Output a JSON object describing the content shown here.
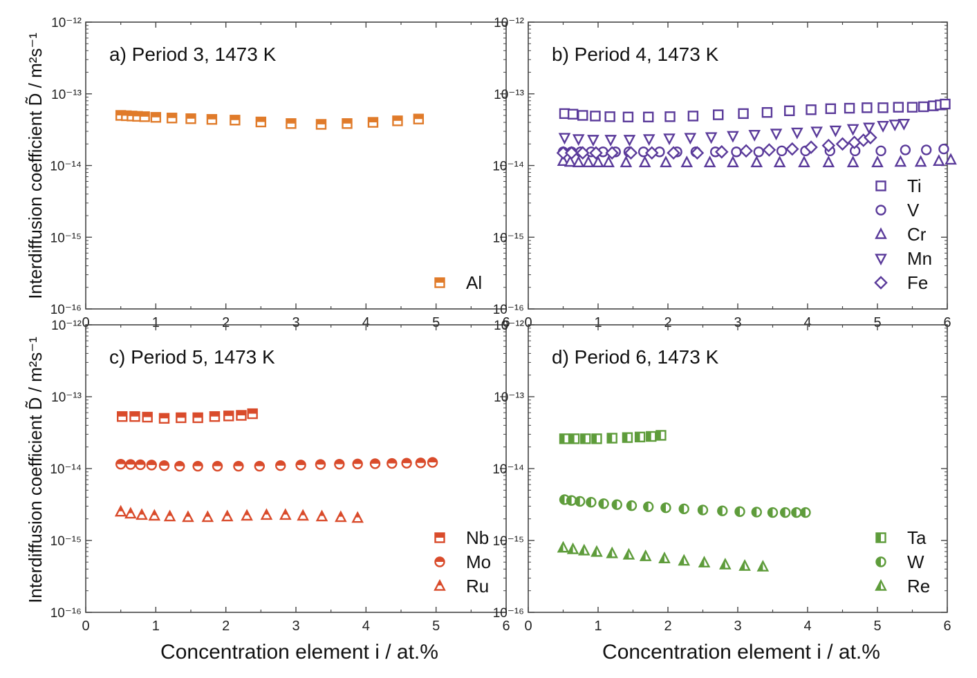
{
  "figure": {
    "x_axis_label": "Concentration element i / at.%",
    "y_axis_label": "Interdiffusion coefficient D̃ / m²s⁻¹"
  },
  "chart_data": [
    {
      "type": "scatter",
      "panel": "a",
      "title": "a) Period 3, 1473 K",
      "xlim": [
        0,
        6
      ],
      "ylim": [
        1e-16,
        1e-12
      ],
      "yscale": "log",
      "xticks": [
        "0",
        "1",
        "2",
        "3",
        "4",
        "5",
        "6"
      ],
      "yticks": [
        "10⁻¹²",
        "10⁻¹³",
        "10⁻¹⁴",
        "10⁻¹⁵",
        "10⁻¹⁶"
      ],
      "legend_position": "bottom-right",
      "series": [
        {
          "name": "Al",
          "marker": "square-half",
          "color": "#e07b2a",
          "x": [
            0.5,
            0.58,
            0.66,
            0.74,
            0.84,
            1.0,
            1.23,
            1.5,
            1.8,
            2.13,
            2.5,
            2.93,
            3.36,
            3.73,
            4.1,
            4.45,
            4.75
          ],
          "y": [
            5e-14,
            4.95e-14,
            4.9e-14,
            4.85e-14,
            4.8e-14,
            4.7e-14,
            4.6e-14,
            4.5e-14,
            4.4e-14,
            4.3e-14,
            4.05e-14,
            3.85e-14,
            3.75e-14,
            3.85e-14,
            4e-14,
            4.2e-14,
            4.45e-14
          ]
        }
      ]
    },
    {
      "type": "scatter",
      "panel": "b",
      "title": "b) Period 4, 1473 K",
      "xlim": [
        0,
        6
      ],
      "ylim": [
        1e-16,
        1e-12
      ],
      "yscale": "log",
      "xticks": [
        "0",
        "1",
        "2",
        "3",
        "4",
        "5",
        "6"
      ],
      "yticks": [
        "10⁻¹²",
        "10⁻¹³",
        "10⁻¹⁴",
        "10⁻¹⁵",
        "10⁻¹⁶"
      ],
      "legend_position": "bottom-right",
      "series": [
        {
          "name": "Ti",
          "marker": "square",
          "color": "#5a3a9a",
          "x": [
            0.52,
            0.64,
            0.78,
            0.96,
            1.17,
            1.43,
            1.72,
            2.03,
            2.36,
            2.72,
            3.08,
            3.42,
            3.74,
            4.05,
            4.33,
            4.6,
            4.85,
            5.08,
            5.3,
            5.5,
            5.66,
            5.8,
            5.9,
            5.97
          ],
          "y": [
            5.3e-14,
            5.2e-14,
            5e-14,
            4.9e-14,
            4.8e-14,
            4.75e-14,
            4.75e-14,
            4.8e-14,
            4.9e-14,
            5.1e-14,
            5.3e-14,
            5.5e-14,
            5.8e-14,
            6e-14,
            6.2e-14,
            6.3e-14,
            6.4e-14,
            6.4e-14,
            6.5e-14,
            6.5e-14,
            6.6e-14,
            6.8e-14,
            7e-14,
            7.2e-14
          ]
        },
        {
          "name": "V",
          "marker": "circle",
          "color": "#5a3a9a",
          "x": [
            0.5,
            0.62,
            0.75,
            0.9,
            1.07,
            1.25,
            1.44,
            1.65,
            1.88,
            2.13,
            2.4,
            2.68,
            2.98,
            3.3,
            3.63,
            3.97,
            4.32,
            4.68,
            5.05,
            5.4,
            5.7,
            5.95
          ],
          "y": [
            1.55e-14,
            1.55e-14,
            1.55e-14,
            1.55e-14,
            1.55e-14,
            1.55e-14,
            1.55e-14,
            1.55e-14,
            1.55e-14,
            1.55e-14,
            1.55e-14,
            1.55e-14,
            1.55e-14,
            1.55e-14,
            1.6e-14,
            1.6e-14,
            1.6e-14,
            1.6e-14,
            1.6e-14,
            1.65e-14,
            1.65e-14,
            1.7e-14
          ]
        },
        {
          "name": "Cr",
          "marker": "triangle-up",
          "color": "#5a3a9a",
          "x": [
            0.5,
            0.6,
            0.72,
            0.86,
            1.0,
            1.15,
            1.4,
            1.67,
            1.97,
            2.27,
            2.6,
            2.93,
            3.27,
            3.6,
            3.95,
            4.3,
            4.65,
            5.0,
            5.33,
            5.62,
            5.88,
            6.05
          ],
          "y": [
            1.15e-14,
            1.12e-14,
            1.1e-14,
            1.1e-14,
            1.1e-14,
            1.1e-14,
            1.1e-14,
            1.1e-14,
            1.1e-14,
            1.1e-14,
            1.1e-14,
            1.1e-14,
            1.1e-14,
            1.1e-14,
            1.1e-14,
            1.1e-14,
            1.1e-14,
            1.1e-14,
            1.12e-14,
            1.12e-14,
            1.15e-14,
            1.2e-14
          ]
        },
        {
          "name": "Mn",
          "marker": "triangle-down",
          "color": "#5a3a9a",
          "x": [
            0.52,
            0.72,
            0.93,
            1.18,
            1.45,
            1.73,
            2.02,
            2.32,
            2.62,
            2.93,
            3.24,
            3.55,
            3.85,
            4.13,
            4.4,
            4.65,
            4.88,
            5.08,
            5.25,
            5.38
          ],
          "y": [
            2.45e-14,
            2.35e-14,
            2.3e-14,
            2.3e-14,
            2.3e-14,
            2.35e-14,
            2.4e-14,
            2.45e-14,
            2.5e-14,
            2.6e-14,
            2.7e-14,
            2.8e-14,
            2.9e-14,
            3e-14,
            3.1e-14,
            3.25e-14,
            3.4e-14,
            3.6e-14,
            3.75e-14,
            3.85e-14
          ]
        },
        {
          "name": "Fe",
          "marker": "diamond",
          "color": "#5a3a9a",
          "x": [
            0.5,
            0.62,
            0.78,
            0.97,
            1.2,
            1.47,
            1.77,
            2.08,
            2.42,
            2.77,
            3.12,
            3.45,
            3.78,
            4.05,
            4.3,
            4.5,
            4.67,
            4.8,
            4.9
          ],
          "y": [
            1.5e-14,
            1.5e-14,
            1.5e-14,
            1.5e-14,
            1.5e-14,
            1.5e-14,
            1.5e-14,
            1.5e-14,
            1.5e-14,
            1.55e-14,
            1.6e-14,
            1.65e-14,
            1.7e-14,
            1.8e-14,
            1.9e-14,
            2e-14,
            2.1e-14,
            2.25e-14,
            2.45e-14
          ]
        }
      ]
    },
    {
      "type": "scatter",
      "panel": "c",
      "title": "c) Period 5, 1473 K",
      "xlim": [
        0,
        6
      ],
      "ylim": [
        1e-16,
        1e-12
      ],
      "yscale": "log",
      "xticks": [
        "0",
        "1",
        "2",
        "3",
        "4",
        "5",
        "6"
      ],
      "yticks": [
        "10⁻¹²",
        "10⁻¹³",
        "10⁻¹⁴",
        "10⁻¹⁵",
        "10⁻¹⁶"
      ],
      "legend_position": "bottom-right",
      "series": [
        {
          "name": "Nb",
          "marker": "square-half",
          "color": "#d94b2b",
          "x": [
            0.52,
            0.7,
            0.88,
            1.12,
            1.36,
            1.6,
            1.84,
            2.04,
            2.22,
            2.38
          ],
          "y": [
            5.3e-14,
            5.3e-14,
            5.2e-14,
            5e-14,
            5.1e-14,
            5.1e-14,
            5.3e-14,
            5.4e-14,
            5.5e-14,
            5.8e-14
          ]
        },
        {
          "name": "Mo",
          "marker": "circle-half",
          "color": "#d94b2b",
          "x": [
            0.5,
            0.64,
            0.78,
            0.94,
            1.12,
            1.34,
            1.6,
            1.88,
            2.18,
            2.48,
            2.78,
            3.07,
            3.35,
            3.62,
            3.88,
            4.13,
            4.37,
            4.58,
            4.78,
            4.95
          ],
          "y": [
            1.15e-14,
            1.14e-14,
            1.13e-14,
            1.12e-14,
            1.1e-14,
            1.08e-14,
            1.08e-14,
            1.08e-14,
            1.08e-14,
            1.08e-14,
            1.1e-14,
            1.12e-14,
            1.14e-14,
            1.15e-14,
            1.16e-14,
            1.17e-14,
            1.18e-14,
            1.19e-14,
            1.2e-14,
            1.22e-14
          ]
        },
        {
          "name": "Ru",
          "marker": "triangle-half",
          "color": "#d94b2b",
          "x": [
            0.5,
            0.64,
            0.8,
            0.98,
            1.2,
            1.46,
            1.74,
            2.02,
            2.3,
            2.58,
            2.85,
            3.1,
            3.37,
            3.64,
            3.88
          ],
          "y": [
            2.5e-15,
            2.35e-15,
            2.25e-15,
            2.2e-15,
            2.15e-15,
            2.1e-15,
            2.1e-15,
            2.15e-15,
            2.2e-15,
            2.25e-15,
            2.25e-15,
            2.2e-15,
            2.15e-15,
            2.1e-15,
            2.05e-15
          ]
        }
      ]
    },
    {
      "type": "scatter",
      "panel": "d",
      "title": "d) Period 6, 1473 K",
      "xlim": [
        0,
        6
      ],
      "ylim": [
        1e-16,
        1e-12
      ],
      "yscale": "log",
      "xticks": [
        "0",
        "1",
        "2",
        "3",
        "4",
        "5",
        "6"
      ],
      "yticks": [
        "10⁻¹²",
        "10⁻¹³",
        "10⁻¹⁴",
        "10⁻¹⁵",
        "10⁻¹⁶"
      ],
      "legend_position": "bottom-right",
      "series": [
        {
          "name": "Ta",
          "marker": "square-half-v",
          "color": "#5e9c3b",
          "x": [
            0.52,
            0.66,
            0.82,
            0.98,
            1.2,
            1.42,
            1.6,
            1.76,
            1.9
          ],
          "y": [
            2.6e-14,
            2.6e-14,
            2.6e-14,
            2.6e-14,
            2.65e-14,
            2.7e-14,
            2.75e-14,
            2.8e-14,
            2.9e-14
          ]
        },
        {
          "name": "W",
          "marker": "circle-half-v",
          "color": "#5e9c3b",
          "x": [
            0.52,
            0.62,
            0.74,
            0.9,
            1.08,
            1.27,
            1.48,
            1.72,
            1.97,
            2.23,
            2.5,
            2.78,
            3.03,
            3.27,
            3.5,
            3.68,
            3.84,
            3.97
          ],
          "y": [
            3.7e-15,
            3.6e-15,
            3.5e-15,
            3.4e-15,
            3.25e-15,
            3.15e-15,
            3.05e-15,
            2.95e-15,
            2.85e-15,
            2.75e-15,
            2.65e-15,
            2.58e-15,
            2.52e-15,
            2.48e-15,
            2.45e-15,
            2.45e-15,
            2.45e-15,
            2.45e-15
          ]
        },
        {
          "name": "Re",
          "marker": "triangle-half-v",
          "color": "#5e9c3b",
          "x": [
            0.5,
            0.64,
            0.8,
            0.98,
            1.2,
            1.44,
            1.68,
            1.95,
            2.23,
            2.52,
            2.82,
            3.1,
            3.36
          ],
          "y": [
            7.9e-16,
            7.5e-16,
            7.2e-16,
            6.9e-16,
            6.6e-16,
            6.3e-16,
            6e-16,
            5.6e-16,
            5.2e-16,
            4.9e-16,
            4.6e-16,
            4.4e-16,
            4.3e-16
          ]
        }
      ]
    }
  ]
}
